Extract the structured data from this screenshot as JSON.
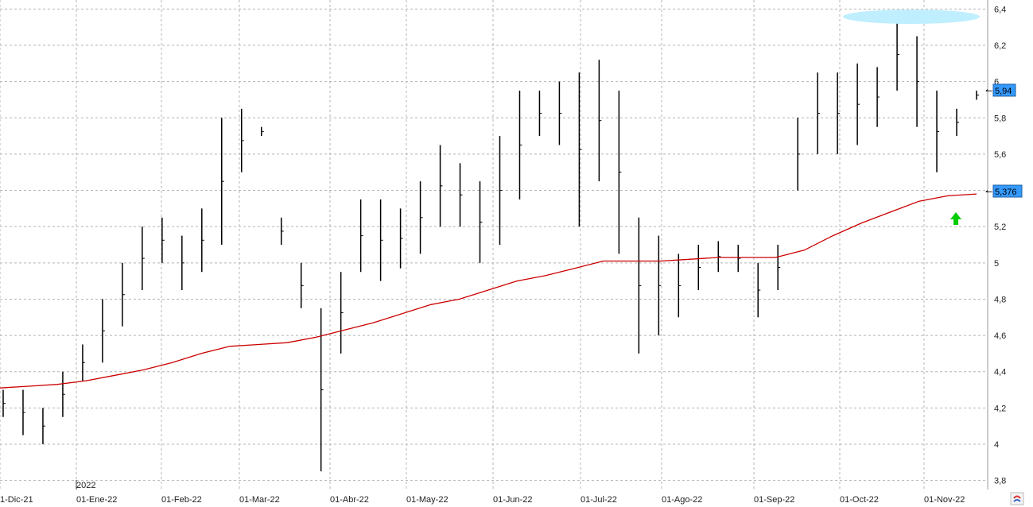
{
  "chart_data": {
    "type": "ohlc",
    "year_label": "2022",
    "x_tick_labels": [
      "1-Dic-21",
      "01-Ene-22",
      "01-Feb-22",
      "01-Mar-22",
      "01-Abr-22",
      "01-May-22",
      "01-Jun-22",
      "01-Jul-22",
      "01-Ago-22",
      "01-Sep-22",
      "01-Oct-22",
      "01-Nov-22"
    ],
    "y_tick_labels": [
      "3,8",
      "4",
      "4,2",
      "4,4",
      "4,6",
      "4,8",
      "5",
      "5,2",
      "5,4",
      "5,6",
      "5,8",
      "6",
      "6,2",
      "6,4"
    ],
    "ylim": [
      3.75,
      6.45
    ],
    "grid": true,
    "last_price": {
      "value": 5.94,
      "label": "5,94",
      "color": "#3399ff"
    },
    "ma_last": {
      "value": 5.376,
      "label": "5,376",
      "color": "#3399ff"
    },
    "moving_average": {
      "color": "#cc0000",
      "y": [
        4.31,
        4.32,
        4.33,
        4.35,
        4.38,
        4.41,
        4.45,
        4.5,
        4.54,
        4.55,
        4.56,
        4.59,
        4.63,
        4.67,
        4.72,
        4.77,
        4.8,
        4.85,
        4.9,
        4.93,
        4.97,
        5.01,
        5.01,
        5.01,
        5.02,
        5.03,
        5.03,
        5.03,
        5.07,
        5.15,
        5.22,
        5.28,
        5.34,
        5.37,
        5.38
      ]
    },
    "price_bars": {
      "color": "#000000",
      "lows": [
        4.15,
        4.05,
        4.0,
        4.15,
        4.35,
        4.45,
        4.65,
        4.85,
        5.0,
        4.85,
        4.95,
        5.1,
        5.5,
        5.7,
        5.1,
        4.75,
        3.85,
        4.5,
        4.95,
        4.9,
        4.97,
        5.05,
        5.2,
        5.2,
        5.0,
        5.1,
        5.35,
        5.7,
        5.65,
        5.2,
        5.45,
        5.05,
        4.5,
        4.6,
        4.7,
        4.85,
        4.95,
        4.95,
        4.7,
        4.85,
        5.4,
        5.6,
        5.6,
        5.65,
        5.75,
        5.95,
        5.75,
        5.5,
        5.7,
        5.9
      ],
      "highs": [
        4.3,
        4.3,
        4.2,
        4.4,
        4.55,
        4.8,
        5.0,
        5.2,
        5.25,
        5.15,
        5.3,
        5.8,
        5.85,
        5.75,
        5.25,
        5.0,
        4.75,
        4.95,
        5.35,
        5.35,
        5.3,
        5.45,
        5.65,
        5.55,
        5.45,
        5.7,
        5.95,
        5.95,
        6.0,
        6.05,
        6.12,
        5.95,
        5.25,
        5.15,
        5.05,
        5.1,
        5.12,
        5.1,
        5.0,
        5.1,
        5.8,
        6.05,
        6.05,
        6.1,
        6.08,
        6.35,
        6.25,
        5.95,
        5.85,
        5.95
      ]
    },
    "annotations": [
      {
        "kind": "highlight-ellipse",
        "color": "#bfefff"
      },
      {
        "kind": "up-arrow",
        "color": "#00cc00"
      }
    ]
  },
  "ui": {
    "corner_icon": "logo-icon"
  }
}
